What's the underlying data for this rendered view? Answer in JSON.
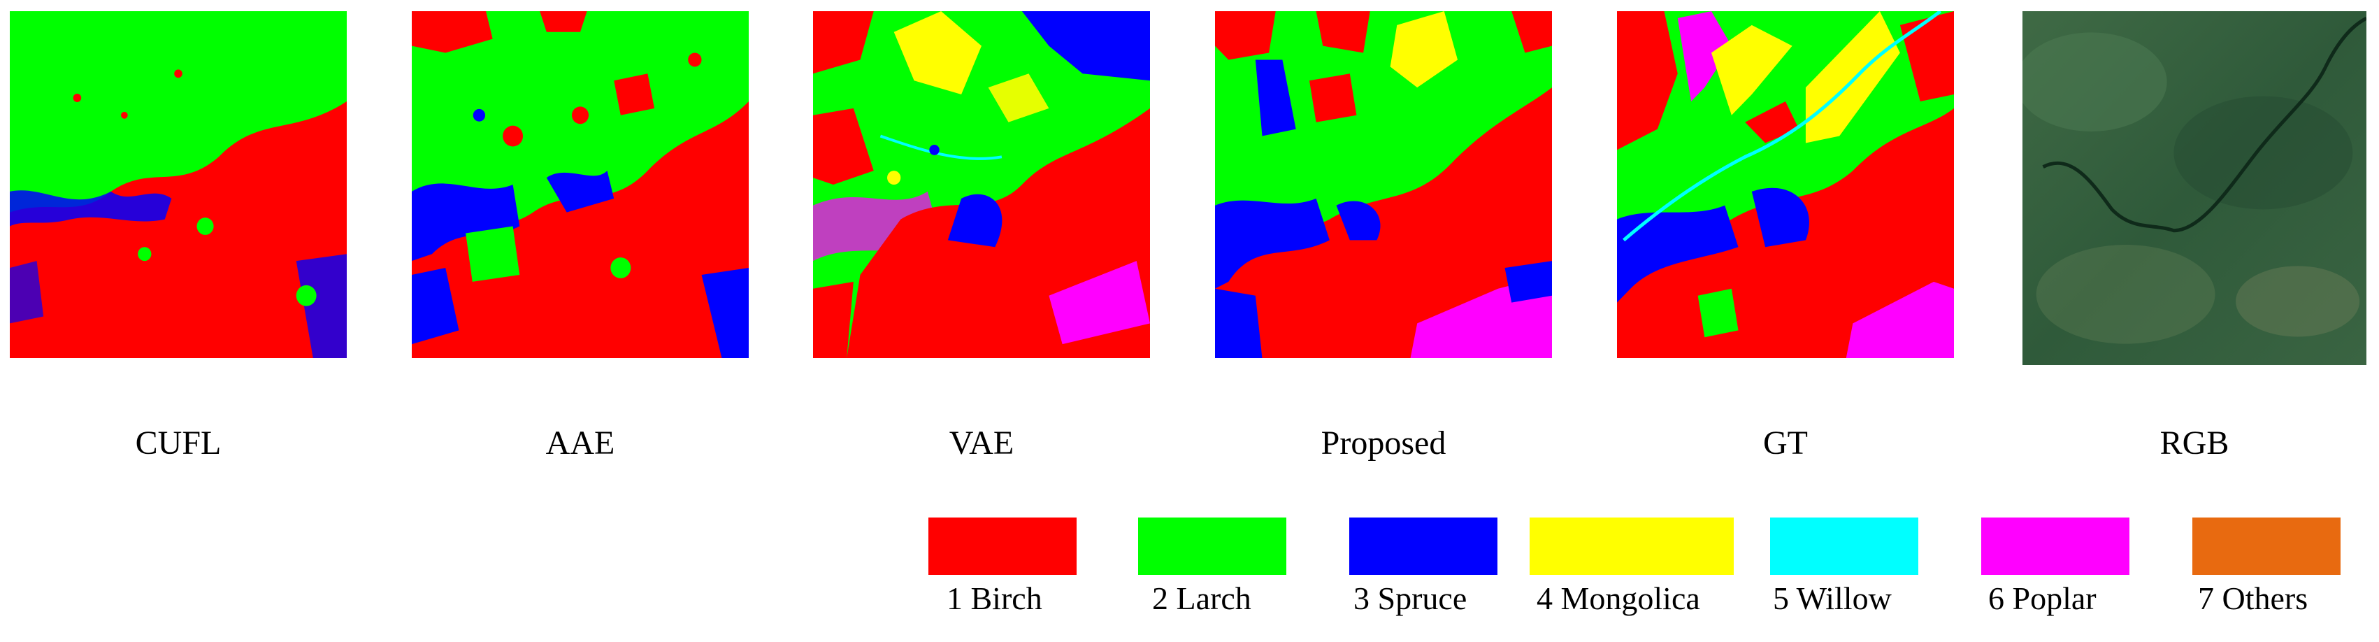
{
  "panels": [
    {
      "id": "cufl",
      "caption": "CUFL"
    },
    {
      "id": "aae",
      "caption": "AAE"
    },
    {
      "id": "vae",
      "caption": "VAE"
    },
    {
      "id": "proposed",
      "caption": "Proposed"
    },
    {
      "id": "gt",
      "caption": "GT"
    },
    {
      "id": "rgb",
      "caption": "RGB"
    }
  ],
  "legend": [
    {
      "label": "1 Birch",
      "color": "#ff0000"
    },
    {
      "label": "2 Larch",
      "color": "#00ff00"
    },
    {
      "label": "3 Spruce",
      "color": "#0000ff"
    },
    {
      "label": "4 Mongolica",
      "color": "#ffff00"
    },
    {
      "label": "5 Willow",
      "color": "#00ffff"
    },
    {
      "label": "6 Poplar",
      "color": "#ff00ff"
    },
    {
      "label": "7 Others",
      "color": "#e86a10"
    }
  ]
}
